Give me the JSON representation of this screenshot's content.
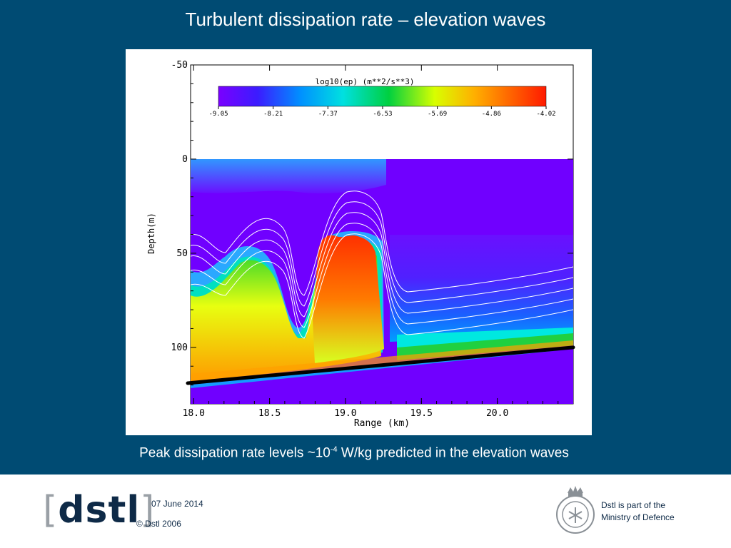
{
  "slide": {
    "title": "Turbulent dissipation rate – elevation waves",
    "caption_prefix": "Peak dissipation rate levels ~10",
    "caption_exponent": "-4",
    "caption_suffix": " W/kg predicted in the elevation waves"
  },
  "footer": {
    "logo_left": "[",
    "logo_text": "dstl",
    "logo_right": "]",
    "date": "07 June 2014",
    "copyright": "© Dstl 2006",
    "mod_line1": "Dstl is part of the",
    "mod_line2": "Ministry of Defence",
    "crest_icon": "mod-crest-icon"
  },
  "chart_data": {
    "type": "heatmap",
    "xlabel": "Range (km)",
    "ylabel": "Depth(m)",
    "xlim": [
      17.98,
      20.5
    ],
    "ylim": [
      -50,
      130
    ],
    "y_inverted": true,
    "x_ticks": [
      "18.0",
      "18.5",
      "19.0",
      "19.5",
      "20.0"
    ],
    "y_ticks": [
      "-50",
      "0",
      "50",
      "100"
    ],
    "colorbar": {
      "title": "log10(ep) (m**2/s**3)",
      "ticks": [
        "-9.05",
        "-8.21",
        "-7.37",
        "-6.53",
        "-5.69",
        "-4.86",
        "-4.02"
      ],
      "min": -9.05,
      "max": -4.02
    },
    "seabed_line": {
      "x": [
        17.98,
        20.5
      ],
      "depth": [
        119,
        100
      ]
    },
    "colors": {
      "background": "#004b73",
      "seabed": "#000000",
      "isolines": "#ffffff"
    }
  }
}
